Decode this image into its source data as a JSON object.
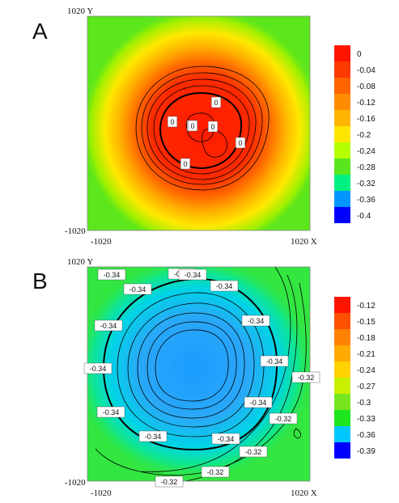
{
  "chart_data": [
    {
      "type": "heatmap",
      "panel_label": "A",
      "x_axis_label": "X",
      "y_axis_label": "Y",
      "x_range": [
        -1020,
        1020
      ],
      "y_range": [
        -1020,
        1020
      ],
      "x_tick_labels": [
        "-1020",
        "1020 X"
      ],
      "y_tick_labels": [
        "1020 Y",
        "-1020"
      ],
      "field": {
        "center": [
          0,
          100
        ],
        "peak": 0.0,
        "background": -0.26,
        "radius": 320,
        "outer_radius": 620
      },
      "colorbar": {
        "labels": [
          "0",
          "-0.04",
          "-0.08",
          "-0.12",
          "-0.16",
          "-0.2",
          "-0.24",
          "-0.28",
          "-0.32",
          "-0.36",
          "-0.4"
        ],
        "colors": [
          "#ff1400",
          "#ff3a00",
          "#ff6400",
          "#ff8c00",
          "#ffb400",
          "#ffe600",
          "#b4ff00",
          "#5ae61e",
          "#00f082",
          "#0096ff",
          "#0000ff"
        ]
      },
      "contour_labels": [
        "0",
        "0",
        "0",
        "0",
        "0",
        "0",
        "0"
      ]
    },
    {
      "type": "heatmap",
      "panel_label": "B",
      "x_axis_label": "X",
      "y_axis_label": "Y",
      "x_range": [
        -1020,
        1020
      ],
      "y_range": [
        -1020,
        1020
      ],
      "x_tick_labels": [
        "-1020",
        "1020 X"
      ],
      "y_tick_labels": [
        "1020 Y",
        "-1020"
      ],
      "field": {
        "center": [
          -80,
          10
        ],
        "minimum": -0.385,
        "background": -0.31,
        "radius": 620
      },
      "colorbar": {
        "labels": [
          "-0.12",
          "-0.15",
          "-0.18",
          "-0.21",
          "-0.24",
          "-0.27",
          "-0.3",
          "-0.33",
          "-0.36",
          "-0.39"
        ],
        "colors": [
          "#ff1400",
          "#ff5000",
          "#ff8200",
          "#ffaa00",
          "#ffd200",
          "#c8f000",
          "#78e61e",
          "#1ee61e",
          "#00c8ff",
          "#0000ff"
        ]
      },
      "contour_labels": [
        "-0.34",
        "-0.34",
        "-0.34",
        "-0.34",
        "-0.34",
        "-0.34",
        "-0.34",
        "-0.34",
        "-0.34",
        "-0.34",
        "-0.34",
        "-0.34",
        "-0.34",
        "-0.32",
        "-0.32",
        "-0.32",
        "-0.32",
        "-0.32"
      ]
    }
  ]
}
